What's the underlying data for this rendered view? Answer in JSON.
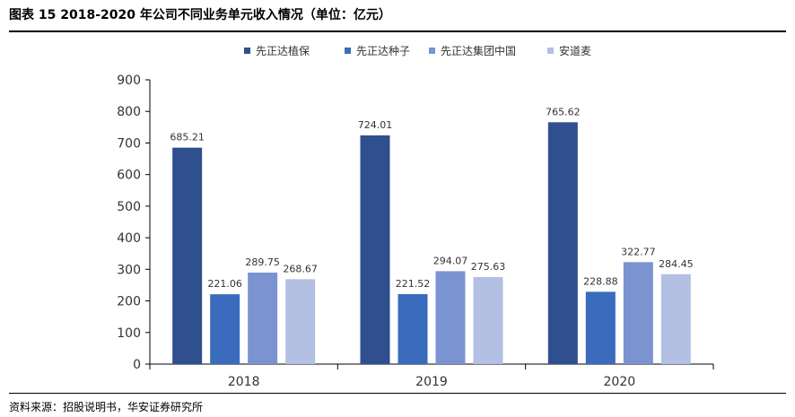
{
  "figure": {
    "title": "图表 15 2018-2020 年公司不同业务单元收入情况（单位：亿元）",
    "source": "资料来源：招股说明书，华安证券研究所"
  },
  "chart_data": {
    "type": "bar",
    "title": "",
    "xlabel": "",
    "ylabel": "",
    "categories": [
      "2018",
      "2019",
      "2020"
    ],
    "ylim": [
      0,
      900
    ],
    "yticks": [
      0,
      100,
      200,
      300,
      400,
      500,
      600,
      700,
      800,
      900
    ],
    "legend_position": "top",
    "grid": false,
    "series": [
      {
        "name": "先正达植保",
        "color": "#2f4f8f",
        "values": [
          685.21,
          724.01,
          765.62
        ]
      },
      {
        "name": "先正达种子",
        "color": "#3a6bbd",
        "values": [
          221.06,
          221.52,
          228.88
        ]
      },
      {
        "name": "先正达集团中国",
        "color": "#7b93d1",
        "values": [
          289.75,
          294.07,
          322.77
        ]
      },
      {
        "name": "安道麦",
        "color": "#b3bfe3",
        "values": [
          268.67,
          275.63,
          284.45
        ]
      }
    ]
  }
}
